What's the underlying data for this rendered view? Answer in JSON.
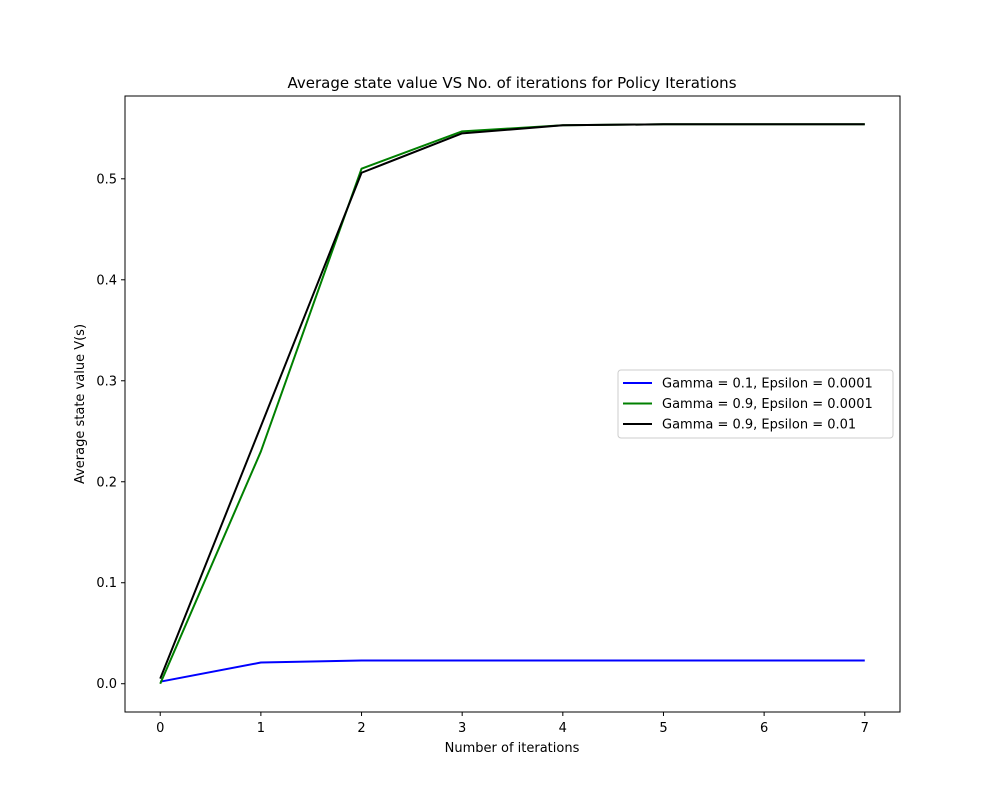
{
  "chart_data": {
    "type": "line",
    "title": "Average state value VS No. of iterations for Policy Iterations",
    "xlabel": "Number of iterations",
    "ylabel": "Average state value V(s)",
    "xlim": [
      -0.35,
      7.35
    ],
    "ylim": [
      -0.028,
      0.582
    ],
    "xticks": [
      0,
      1,
      2,
      3,
      4,
      5,
      6,
      7
    ],
    "xtick_labels": [
      "0",
      "1",
      "2",
      "3",
      "4",
      "5",
      "6",
      "7"
    ],
    "yticks": [
      0.0,
      0.1,
      0.2,
      0.3,
      0.4,
      0.5
    ],
    "ytick_labels": [
      "0.0",
      "0.1",
      "0.2",
      "0.3",
      "0.4",
      "0.5"
    ],
    "grid": false,
    "legend_position": "center-right",
    "x": [
      0,
      1,
      2,
      3,
      4,
      5,
      6,
      7
    ],
    "series": [
      {
        "name": "Gamma = 0.1, Epsilon = 0.0001",
        "color": "#0000ff",
        "values": [
          0.002,
          0.021,
          0.023,
          0.023,
          0.023,
          0.023,
          0.023,
          0.023
        ]
      },
      {
        "name": "Gamma = 0.9, Epsilon = 0.0001",
        "color": "#008000",
        "values": [
          0.0,
          0.23,
          0.51,
          0.547,
          0.553,
          0.554,
          0.554,
          0.554
        ]
      },
      {
        "name": "Gamma = 0.9, Epsilon = 0.01",
        "color": "#000000",
        "values": [
          0.005,
          0.255,
          0.506,
          0.545,
          0.553,
          0.554,
          0.554,
          0.554
        ]
      }
    ]
  }
}
